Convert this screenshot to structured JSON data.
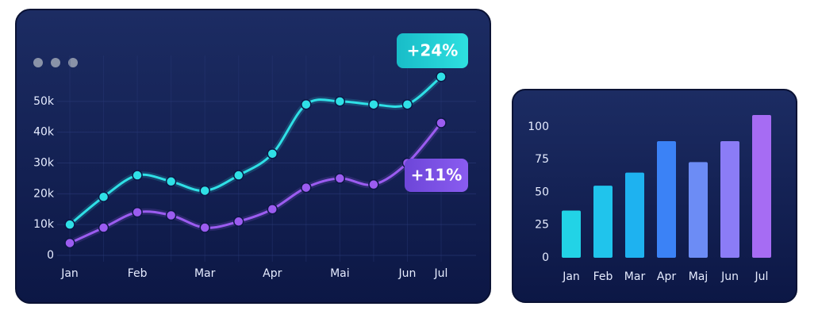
{
  "chart_data": [
    {
      "type": "line",
      "categories": [
        "Jan",
        null,
        "Feb",
        null,
        "Mar",
        null,
        "Apr",
        null,
        "Mai",
        null,
        "Jun",
        "Jul"
      ],
      "series": [
        {
          "color": "#2fe0e6",
          "badge": "+24%",
          "values": [
            10000,
            19000,
            26000,
            24000,
            21000,
            26000,
            33000,
            49000,
            50000,
            49000,
            49000,
            58000
          ]
        },
        {
          "color": "#9b5cf0",
          "badge": "+11%",
          "values": [
            4000,
            9000,
            14000,
            13000,
            9000,
            11000,
            15000,
            22000,
            25000,
            23000,
            30000,
            43000
          ]
        }
      ],
      "ylim": [
        0,
        60000
      ],
      "yticks": [
        0,
        {
          "value": 10000,
          "label": "10k"
        },
        {
          "value": 20000,
          "label": "20k"
        },
        {
          "value": 30000,
          "label": "30k"
        },
        {
          "value": 40000,
          "label": "40k"
        },
        {
          "value": 50000,
          "label": "50k"
        }
      ],
      "grid": true
    },
    {
      "type": "bar",
      "categories": [
        "Jan",
        "Feb",
        "Mar",
        "Apr",
        "Maj",
        "Jun",
        "Jul"
      ],
      "values": [
        36,
        55,
        65,
        89,
        73,
        89,
        109
      ],
      "colors": [
        "#22d3e6",
        "#20c4ec",
        "#1eb2f0",
        "#3b82f6",
        "#6c8cf5",
        "#8b7cf6",
        "#a66cf3"
      ],
      "ylim": [
        0,
        112
      ],
      "yticks": [
        0,
        25,
        50,
        75,
        100
      ],
      "grid": false
    }
  ]
}
